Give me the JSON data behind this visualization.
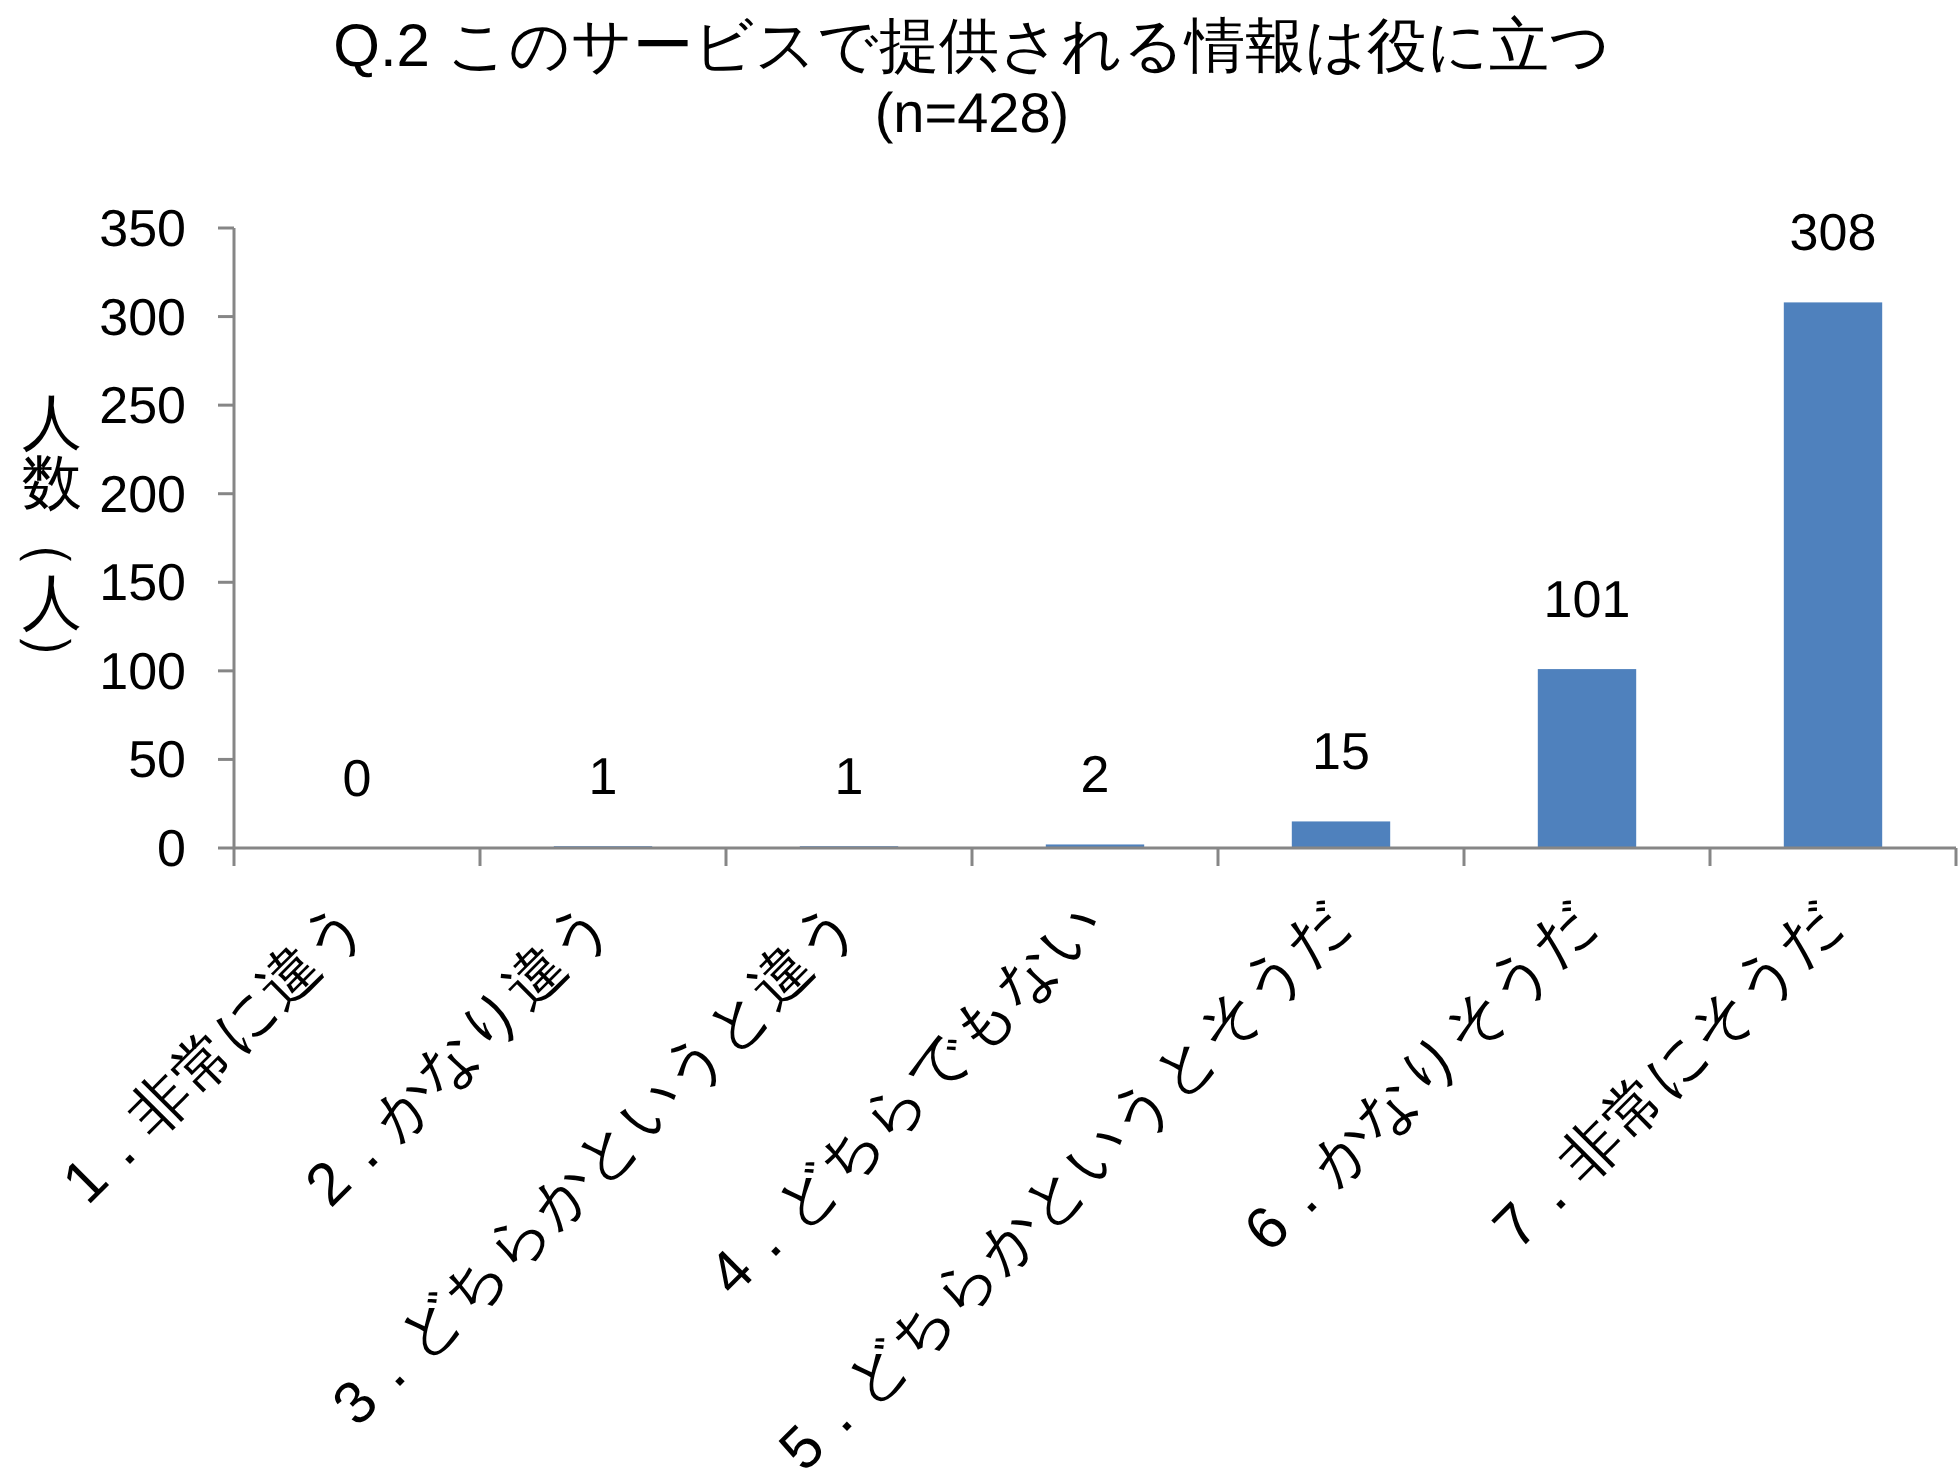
{
  "chart_data": {
    "type": "bar",
    "title": "Q.2 このサービスで提供される情報は役に立つ",
    "subtitle": "(n=428)",
    "ylabel": "人数（人）",
    "categories": [
      "1．非常に違う",
      "2．かなり違う",
      "3．どちらかというと違う",
      "4．どちらでもない",
      "5．どちらかというとそうだ",
      "6．かなりそうだ",
      "7．非常にそうだ"
    ],
    "values": [
      0,
      1,
      1,
      2,
      15,
      101,
      308
    ],
    "color": "#4f81bd",
    "ylim": [
      0,
      350
    ],
    "yticks": [
      0,
      50,
      100,
      150,
      200,
      250,
      300,
      350
    ],
    "data_labels": true
  }
}
